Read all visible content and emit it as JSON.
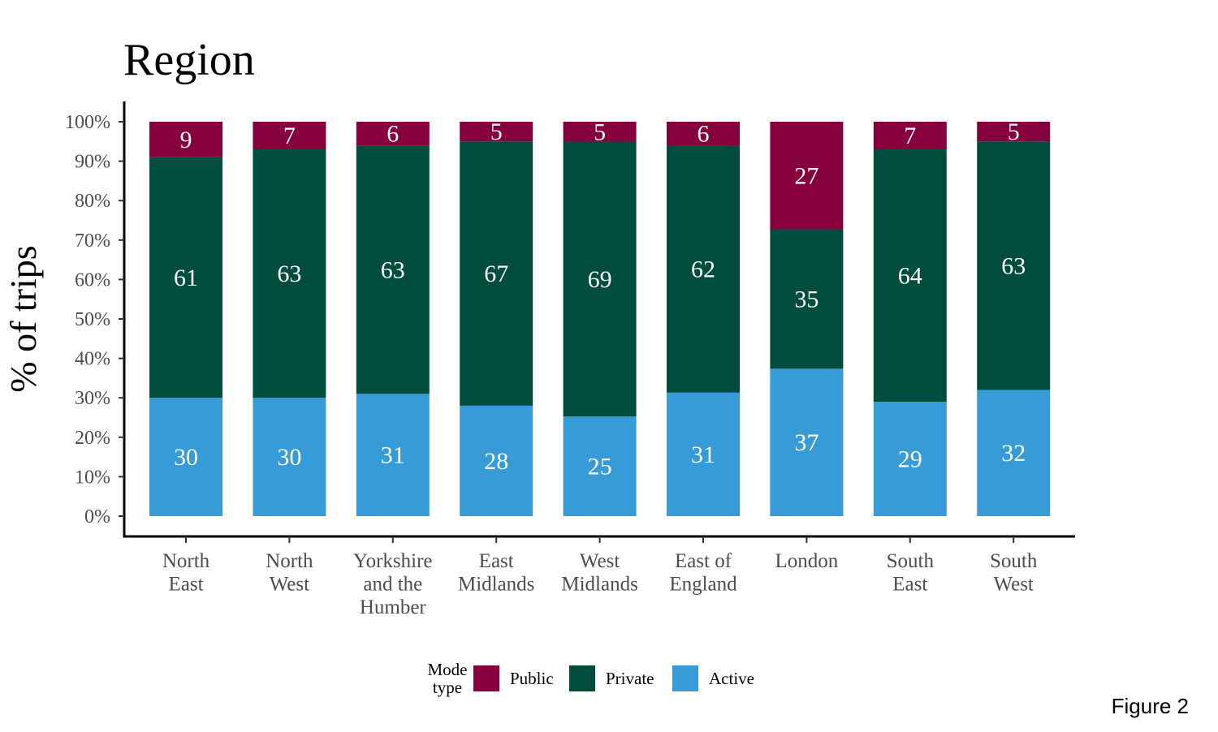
{
  "caption": "Figure 2",
  "chart_data": {
    "type": "bar",
    "stacked": true,
    "title": "Region",
    "xlabel": "",
    "ylabel": "% of trips",
    "ylim": [
      0,
      100
    ],
    "yticks": [
      "0%",
      "10%",
      "20%",
      "30%",
      "40%",
      "50%",
      "60%",
      "70%",
      "80%",
      "90%",
      "100%"
    ],
    "categories": [
      [
        "North",
        "East"
      ],
      [
        "North",
        "West"
      ],
      [
        "Yorkshire",
        "and the",
        "Humber"
      ],
      [
        "East",
        "Midlands"
      ],
      [
        "West",
        "Midlands"
      ],
      [
        "East of",
        "England"
      ],
      [
        "London"
      ],
      [
        "South",
        "East"
      ],
      [
        "South",
        "West"
      ]
    ],
    "series": [
      {
        "name": "Active",
        "color": "#379bd8",
        "values": [
          30,
          30,
          31,
          28,
          25,
          31,
          37,
          29,
          32
        ]
      },
      {
        "name": "Private",
        "color": "#014d3d",
        "values": [
          61,
          63,
          63,
          67,
          69,
          62,
          35,
          64,
          63
        ]
      },
      {
        "name": "Public",
        "color": "#85003c",
        "values": [
          9,
          7,
          6,
          5,
          5,
          6,
          27,
          7,
          5
        ]
      }
    ],
    "legend": {
      "title": [
        "Mode",
        "type"
      ],
      "order": [
        "Public",
        "Private",
        "Active"
      ],
      "position": "bottom"
    },
    "grid": false
  }
}
